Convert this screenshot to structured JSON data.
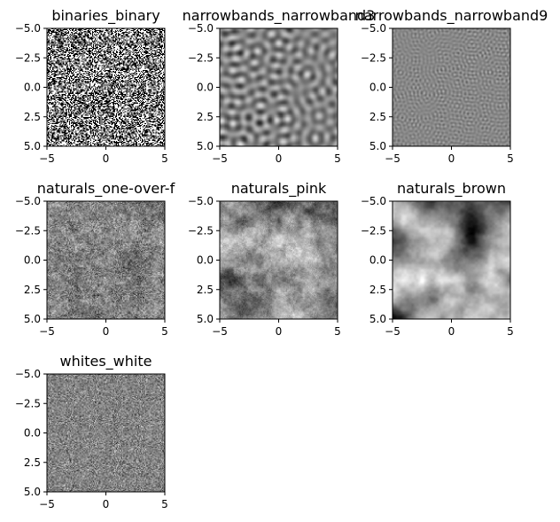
{
  "chart_data": [
    {
      "type": "heatmap",
      "title": "binaries_binary",
      "texture": "binary",
      "xticks": [
        "−5",
        "0",
        "5"
      ],
      "yticks": [
        "−5.0",
        "−2.5",
        "0.0",
        "2.5",
        "5.0"
      ],
      "xlim": [
        -5,
        5
      ],
      "ylim": [
        5,
        -5
      ],
      "colormap": "gray"
    },
    {
      "type": "heatmap",
      "title": "narrowbands_narrowband3",
      "texture": "narrowband-3",
      "xticks": [
        "−5",
        "0",
        "5"
      ],
      "yticks": [
        "−5.0",
        "−2.5",
        "0.0",
        "2.5",
        "5.0"
      ],
      "xlim": [
        -5,
        5
      ],
      "ylim": [
        5,
        -5
      ],
      "colormap": "gray"
    },
    {
      "type": "heatmap",
      "title": "narrowbands_narrowband9",
      "texture": "narrowband-9",
      "xticks": [
        "−5",
        "0",
        "5"
      ],
      "yticks": [
        "−5.0",
        "−2.5",
        "0.0",
        "2.5",
        "5.0"
      ],
      "xlim": [
        -5,
        5
      ],
      "ylim": [
        5,
        -5
      ],
      "colormap": "gray"
    },
    {
      "type": "heatmap",
      "title": "naturals_one-over-f",
      "texture": "one-over-f",
      "xticks": [
        "−5",
        "0",
        "5"
      ],
      "yticks": [
        "−5.0",
        "−2.5",
        "0.0",
        "2.5",
        "5.0"
      ],
      "xlim": [
        -5,
        5
      ],
      "ylim": [
        5,
        -5
      ],
      "colormap": "gray"
    },
    {
      "type": "heatmap",
      "title": "naturals_pink",
      "texture": "pink",
      "xticks": [
        "−5",
        "0",
        "5"
      ],
      "yticks": [
        "−5.0",
        "−2.5",
        "0.0",
        "2.5",
        "5.0"
      ],
      "xlim": [
        -5,
        5
      ],
      "ylim": [
        5,
        -5
      ],
      "colormap": "gray"
    },
    {
      "type": "heatmap",
      "title": "naturals_brown",
      "texture": "brown",
      "xticks": [
        "−5",
        "0",
        "5"
      ],
      "yticks": [
        "−5.0",
        "−2.5",
        "0.0",
        "2.5",
        "5.0"
      ],
      "xlim": [
        -5,
        5
      ],
      "ylim": [
        5,
        -5
      ],
      "colormap": "gray"
    },
    {
      "type": "heatmap",
      "title": "whites_white",
      "texture": "white",
      "xticks": [
        "−5",
        "0",
        "5"
      ],
      "yticks": [
        "−5.0",
        "−2.5",
        "0.0",
        "2.5",
        "5.0"
      ],
      "xlim": [
        -5,
        5
      ],
      "ylim": [
        5,
        -5
      ],
      "colormap": "gray"
    }
  ]
}
